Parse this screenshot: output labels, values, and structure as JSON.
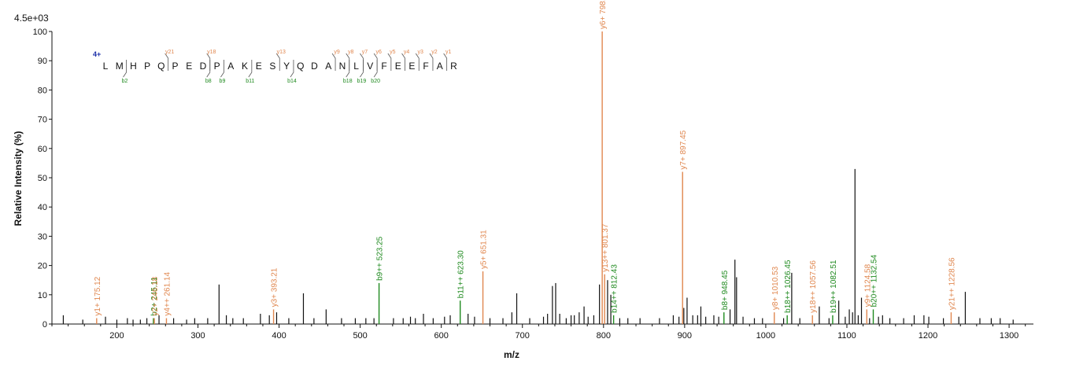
{
  "colors": {
    "y_ion": "#e0874f",
    "b_ion": "#1f8a1f",
    "unmatched": "#111111",
    "charge": "#1a2ea8",
    "axis": "#111111"
  },
  "chart_data": {
    "type": "bar",
    "title": "",
    "xlabel": "m/z",
    "ylabel": "Relative   Intensity (%)",
    "scale_label": "4.5e+03",
    "xlim": [
      120,
      1330
    ],
    "ylim": [
      0,
      100
    ],
    "xticks": [
      200,
      300,
      400,
      500,
      600,
      700,
      800,
      900,
      1000,
      1100,
      1200,
      1300
    ],
    "yticks": [
      0,
      10,
      20,
      30,
      40,
      50,
      60,
      70,
      80,
      90,
      100
    ],
    "grid": false,
    "sequence": {
      "charge": "4+",
      "residues": [
        "L",
        "M",
        "H",
        "P",
        "Q",
        "P",
        "E",
        "D",
        "P",
        "A",
        "K",
        "E",
        "S",
        "Y",
        "Q",
        "D",
        "A",
        "N",
        "L",
        "V",
        "F",
        "E",
        "E",
        "F",
        "A",
        "R"
      ],
      "y_fragments": [
        {
          "after": 5,
          "label": "y21"
        },
        {
          "after": 8,
          "label": "y18"
        },
        {
          "after": 13,
          "label": "y13"
        },
        {
          "after": 17,
          "label": "y9"
        },
        {
          "after": 18,
          "label": "y8"
        },
        {
          "after": 19,
          "label": "y7"
        },
        {
          "after": 20,
          "label": "y6"
        },
        {
          "after": 21,
          "label": "y5"
        },
        {
          "after": 22,
          "label": "y4"
        },
        {
          "after": 23,
          "label": "y3"
        },
        {
          "after": 24,
          "label": "y2"
        },
        {
          "after": 25,
          "label": "y1"
        }
      ],
      "b_fragments": [
        {
          "after": 2,
          "label": "b2"
        },
        {
          "after": 8,
          "label": "b8"
        },
        {
          "after": 9,
          "label": "b9"
        },
        {
          "after": 11,
          "label": "b11"
        },
        {
          "after": 14,
          "label": "b14"
        },
        {
          "after": 18,
          "label": "b18"
        },
        {
          "after": 19,
          "label": "b19"
        },
        {
          "after": 20,
          "label": "b20"
        }
      ]
    },
    "annotated_peaks": [
      {
        "mz": 175.12,
        "intensity": 2,
        "type": "y",
        "label": "y1+ 175.12"
      },
      {
        "mz": 245.11,
        "intensity": 2,
        "type": "b",
        "label": "b2+ 245.11"
      },
      {
        "mz": 246.18,
        "intensity": 2,
        "type": "y",
        "label": "y2+ 246.18"
      },
      {
        "mz": 261.14,
        "intensity": 2,
        "type": "y",
        "label": "y4++ 261.14"
      },
      {
        "mz": 393.21,
        "intensity": 5,
        "type": "y",
        "label": "y3+ 393.21"
      },
      {
        "mz": 523.25,
        "intensity": 14,
        "type": "b",
        "label": "b9++ 523.25"
      },
      {
        "mz": 623.3,
        "intensity": 8,
        "type": "b",
        "label": "b11++ 623.30"
      },
      {
        "mz": 651.31,
        "intensity": 18,
        "type": "y",
        "label": "y5+ 651.31"
      },
      {
        "mz": 798.38,
        "intensity": 100,
        "type": "y",
        "label": "y6+ 798.38"
      },
      {
        "mz": 801.37,
        "intensity": 17,
        "type": "y",
        "label": "y13++ 801.37"
      },
      {
        "mz": 812.43,
        "intensity": 3,
        "type": "b",
        "label": "b14++ 812.43"
      },
      {
        "mz": 897.45,
        "intensity": 52,
        "type": "y",
        "label": "y7+ 897.45"
      },
      {
        "mz": 948.45,
        "intensity": 4,
        "type": "b",
        "label": "b8+ 948.45"
      },
      {
        "mz": 1010.53,
        "intensity": 4,
        "type": "y",
        "label": "y8+ 1010.53"
      },
      {
        "mz": 1026.45,
        "intensity": 3,
        "type": "b",
        "label": "b18++ 1026.45"
      },
      {
        "mz": 1057.56,
        "intensity": 3,
        "type": "y",
        "label": "y18++ 1057.56"
      },
      {
        "mz": 1082.51,
        "intensity": 3,
        "type": "b",
        "label": "b19++ 1082.51"
      },
      {
        "mz": 1124.58,
        "intensity": 5,
        "type": "y",
        "label": "y9+ 1124.58"
      },
      {
        "mz": 1132.54,
        "intensity": 5,
        "type": "b",
        "label": "b20++ 1132.54"
      },
      {
        "mz": 1228.56,
        "intensity": 4,
        "type": "y",
        "label": "y21++ 1228.56"
      }
    ],
    "unannotated_peaks": [
      {
        "mz": 134,
        "intensity": 3
      },
      {
        "mz": 158,
        "intensity": 1.5
      },
      {
        "mz": 186,
        "intensity": 2.5
      },
      {
        "mz": 200,
        "intensity": 1.5
      },
      {
        "mz": 213,
        "intensity": 2
      },
      {
        "mz": 220,
        "intensity": 1.5
      },
      {
        "mz": 229,
        "intensity": 1.5
      },
      {
        "mz": 237,
        "intensity": 2
      },
      {
        "mz": 252,
        "intensity": 3
      },
      {
        "mz": 270,
        "intensity": 2
      },
      {
        "mz": 286,
        "intensity": 1.5
      },
      {
        "mz": 296,
        "intensity": 2
      },
      {
        "mz": 312,
        "intensity": 2
      },
      {
        "mz": 326,
        "intensity": 13.5
      },
      {
        "mz": 335,
        "intensity": 3
      },
      {
        "mz": 343,
        "intensity": 2
      },
      {
        "mz": 356,
        "intensity": 2
      },
      {
        "mz": 377,
        "intensity": 3.5
      },
      {
        "mz": 388,
        "intensity": 3
      },
      {
        "mz": 397,
        "intensity": 4
      },
      {
        "mz": 412,
        "intensity": 2
      },
      {
        "mz": 430,
        "intensity": 10.5
      },
      {
        "mz": 443,
        "intensity": 2
      },
      {
        "mz": 458,
        "intensity": 5
      },
      {
        "mz": 477,
        "intensity": 2
      },
      {
        "mz": 494,
        "intensity": 2
      },
      {
        "mz": 507,
        "intensity": 2
      },
      {
        "mz": 517,
        "intensity": 2
      },
      {
        "mz": 541,
        "intensity": 2
      },
      {
        "mz": 553,
        "intensity": 2
      },
      {
        "mz": 562,
        "intensity": 2.5
      },
      {
        "mz": 568,
        "intensity": 2
      },
      {
        "mz": 578,
        "intensity": 3.5
      },
      {
        "mz": 590,
        "intensity": 2
      },
      {
        "mz": 604,
        "intensity": 2.5
      },
      {
        "mz": 611,
        "intensity": 3
      },
      {
        "mz": 633,
        "intensity": 3.5
      },
      {
        "mz": 641,
        "intensity": 2.5
      },
      {
        "mz": 660,
        "intensity": 2
      },
      {
        "mz": 676,
        "intensity": 2
      },
      {
        "mz": 687,
        "intensity": 4
      },
      {
        "mz": 693,
        "intensity": 10.5
      },
      {
        "mz": 709,
        "intensity": 2
      },
      {
        "mz": 726,
        "intensity": 2.5
      },
      {
        "mz": 731,
        "intensity": 3.5
      },
      {
        "mz": 737,
        "intensity": 13
      },
      {
        "mz": 741,
        "intensity": 14
      },
      {
        "mz": 746,
        "intensity": 3.5
      },
      {
        "mz": 754,
        "intensity": 2
      },
      {
        "mz": 760,
        "intensity": 3
      },
      {
        "mz": 764,
        "intensity": 3
      },
      {
        "mz": 770,
        "intensity": 4
      },
      {
        "mz": 776,
        "intensity": 6
      },
      {
        "mz": 781,
        "intensity": 2.5
      },
      {
        "mz": 788,
        "intensity": 3
      },
      {
        "mz": 795,
        "intensity": 13.5
      },
      {
        "mz": 805,
        "intensity": 15
      },
      {
        "mz": 809,
        "intensity": 10
      },
      {
        "mz": 820,
        "intensity": 2
      },
      {
        "mz": 830,
        "intensity": 2
      },
      {
        "mz": 845,
        "intensity": 2
      },
      {
        "mz": 869,
        "intensity": 2
      },
      {
        "mz": 886,
        "intensity": 3
      },
      {
        "mz": 893,
        "intensity": 2.5
      },
      {
        "mz": 899,
        "intensity": 5.5
      },
      {
        "mz": 903,
        "intensity": 9
      },
      {
        "mz": 910,
        "intensity": 3
      },
      {
        "mz": 916,
        "intensity": 3
      },
      {
        "mz": 920,
        "intensity": 6
      },
      {
        "mz": 926,
        "intensity": 2.5
      },
      {
        "mz": 936,
        "intensity": 3
      },
      {
        "mz": 942,
        "intensity": 2.5
      },
      {
        "mz": 956,
        "intensity": 5
      },
      {
        "mz": 962,
        "intensity": 22
      },
      {
        "mz": 964,
        "intensity": 16
      },
      {
        "mz": 972,
        "intensity": 2.5
      },
      {
        "mz": 986,
        "intensity": 2
      },
      {
        "mz": 996,
        "intensity": 2
      },
      {
        "mz": 1022,
        "intensity": 2
      },
      {
        "mz": 1032,
        "intensity": 17.5
      },
      {
        "mz": 1042,
        "intensity": 2
      },
      {
        "mz": 1066,
        "intensity": 6
      },
      {
        "mz": 1078,
        "intensity": 2
      },
      {
        "mz": 1090,
        "intensity": 8
      },
      {
        "mz": 1098,
        "intensity": 2.5
      },
      {
        "mz": 1103,
        "intensity": 5
      },
      {
        "mz": 1107,
        "intensity": 4
      },
      {
        "mz": 1110,
        "intensity": 53
      },
      {
        "mz": 1114,
        "intensity": 3
      },
      {
        "mz": 1118,
        "intensity": 9
      },
      {
        "mz": 1128,
        "intensity": 2
      },
      {
        "mz": 1139,
        "intensity": 2.5
      },
      {
        "mz": 1144,
        "intensity": 3
      },
      {
        "mz": 1153,
        "intensity": 2
      },
      {
        "mz": 1170,
        "intensity": 2
      },
      {
        "mz": 1183,
        "intensity": 3
      },
      {
        "mz": 1195,
        "intensity": 3
      },
      {
        "mz": 1201,
        "intensity": 2.5
      },
      {
        "mz": 1219,
        "intensity": 2
      },
      {
        "mz": 1238,
        "intensity": 2.5
      },
      {
        "mz": 1246,
        "intensity": 11
      },
      {
        "mz": 1264,
        "intensity": 2
      },
      {
        "mz": 1278,
        "intensity": 2
      },
      {
        "mz": 1289,
        "intensity": 2
      },
      {
        "mz": 1305,
        "intensity": 1.5
      }
    ]
  }
}
